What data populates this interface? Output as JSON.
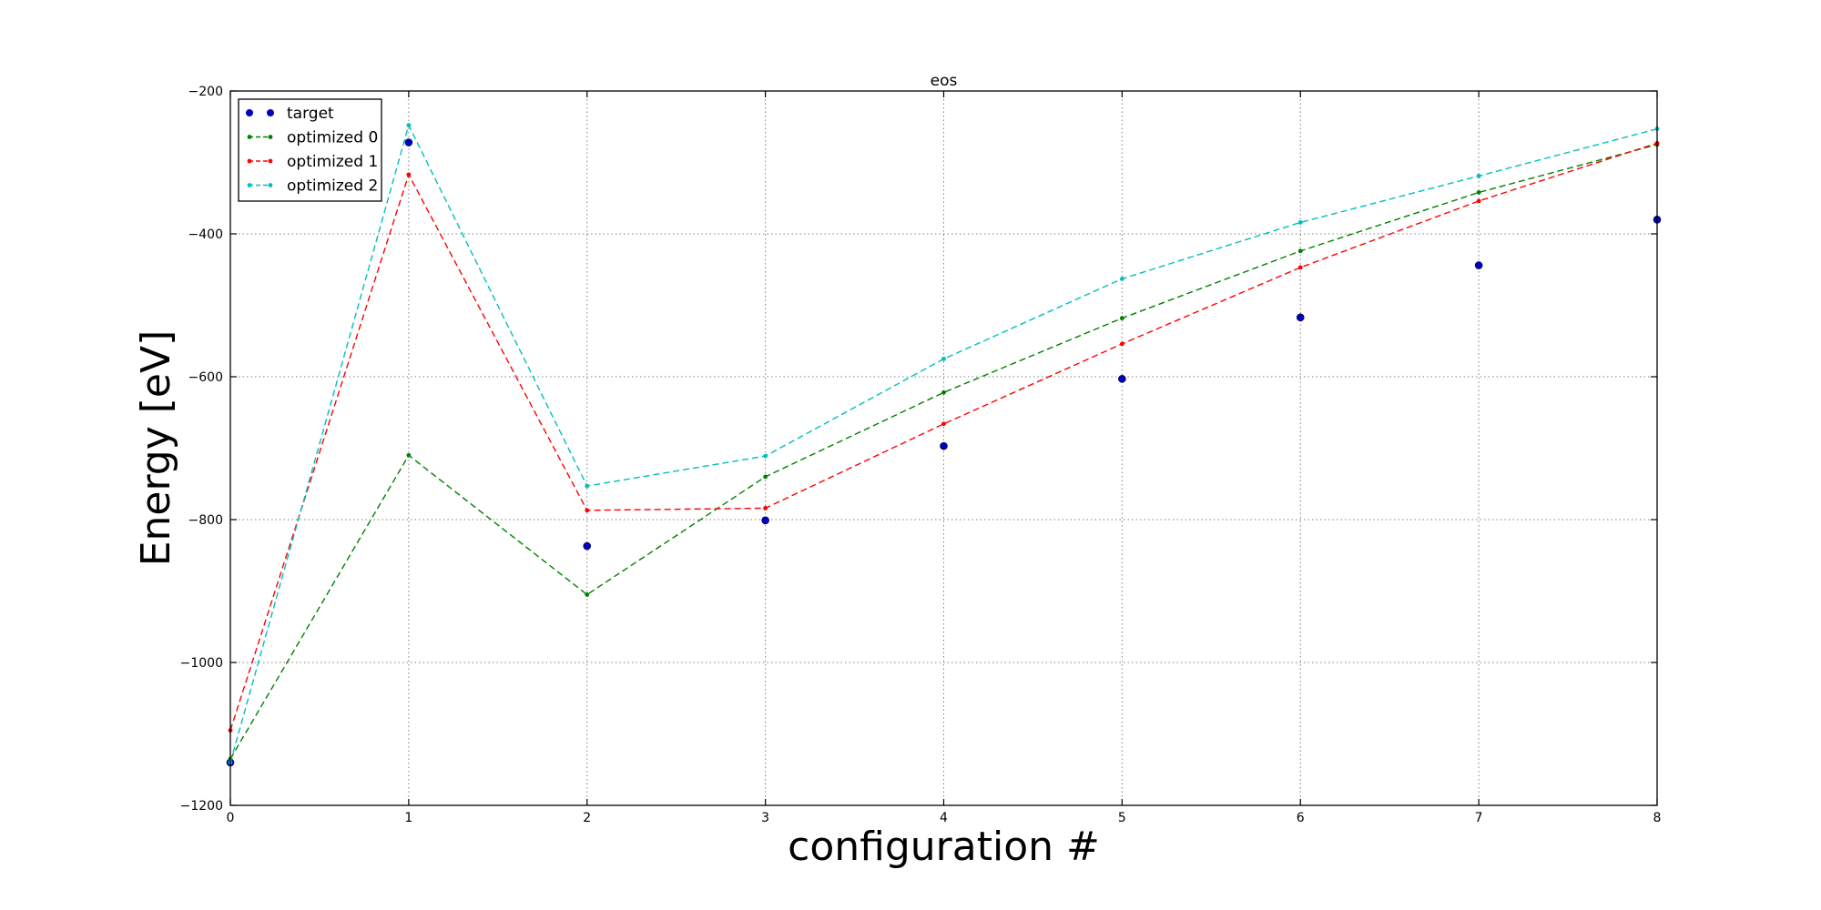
{
  "chart_data": {
    "type": "line",
    "title": "eos",
    "xlabel": "configuration #",
    "ylabel": "Energy [eV]",
    "xlim": [
      0,
      8
    ],
    "ylim": [
      -1200,
      -200
    ],
    "x": [
      0,
      1,
      2,
      3,
      4,
      5,
      6,
      7,
      8
    ],
    "xticks": [
      "0",
      "1",
      "2",
      "3",
      "4",
      "5",
      "6",
      "7",
      "8"
    ],
    "yticks": [
      -1200,
      -1000,
      -800,
      -600,
      -400,
      -200
    ],
    "ytick_labels": [
      "−1200",
      "−1000",
      "−800",
      "−600",
      "−400",
      "−200"
    ],
    "grid": true,
    "legend_position": "top-left",
    "series": [
      {
        "name": "target",
        "style": "markers",
        "color": "#0000bf",
        "values": [
          -1140,
          -272,
          -837,
          -801,
          -697,
          -603,
          -517,
          -444,
          -380
        ]
      },
      {
        "name": "optimized 0",
        "style": "dashed",
        "color": "#008000",
        "values": [
          -1135,
          -710,
          -905,
          -740,
          -622,
          -518,
          -424,
          -342,
          -275
        ]
      },
      {
        "name": "optimized 1",
        "style": "dashed",
        "color": "#ff0000",
        "values": [
          -1095,
          -317,
          -787,
          -784,
          -666,
          -554,
          -447,
          -354,
          -273
        ]
      },
      {
        "name": "optimized 2",
        "style": "dashed",
        "color": "#00bfbf",
        "values": [
          -1140,
          -248,
          -753,
          -711,
          -575,
          -463,
          -384,
          -319,
          -253
        ]
      }
    ]
  }
}
